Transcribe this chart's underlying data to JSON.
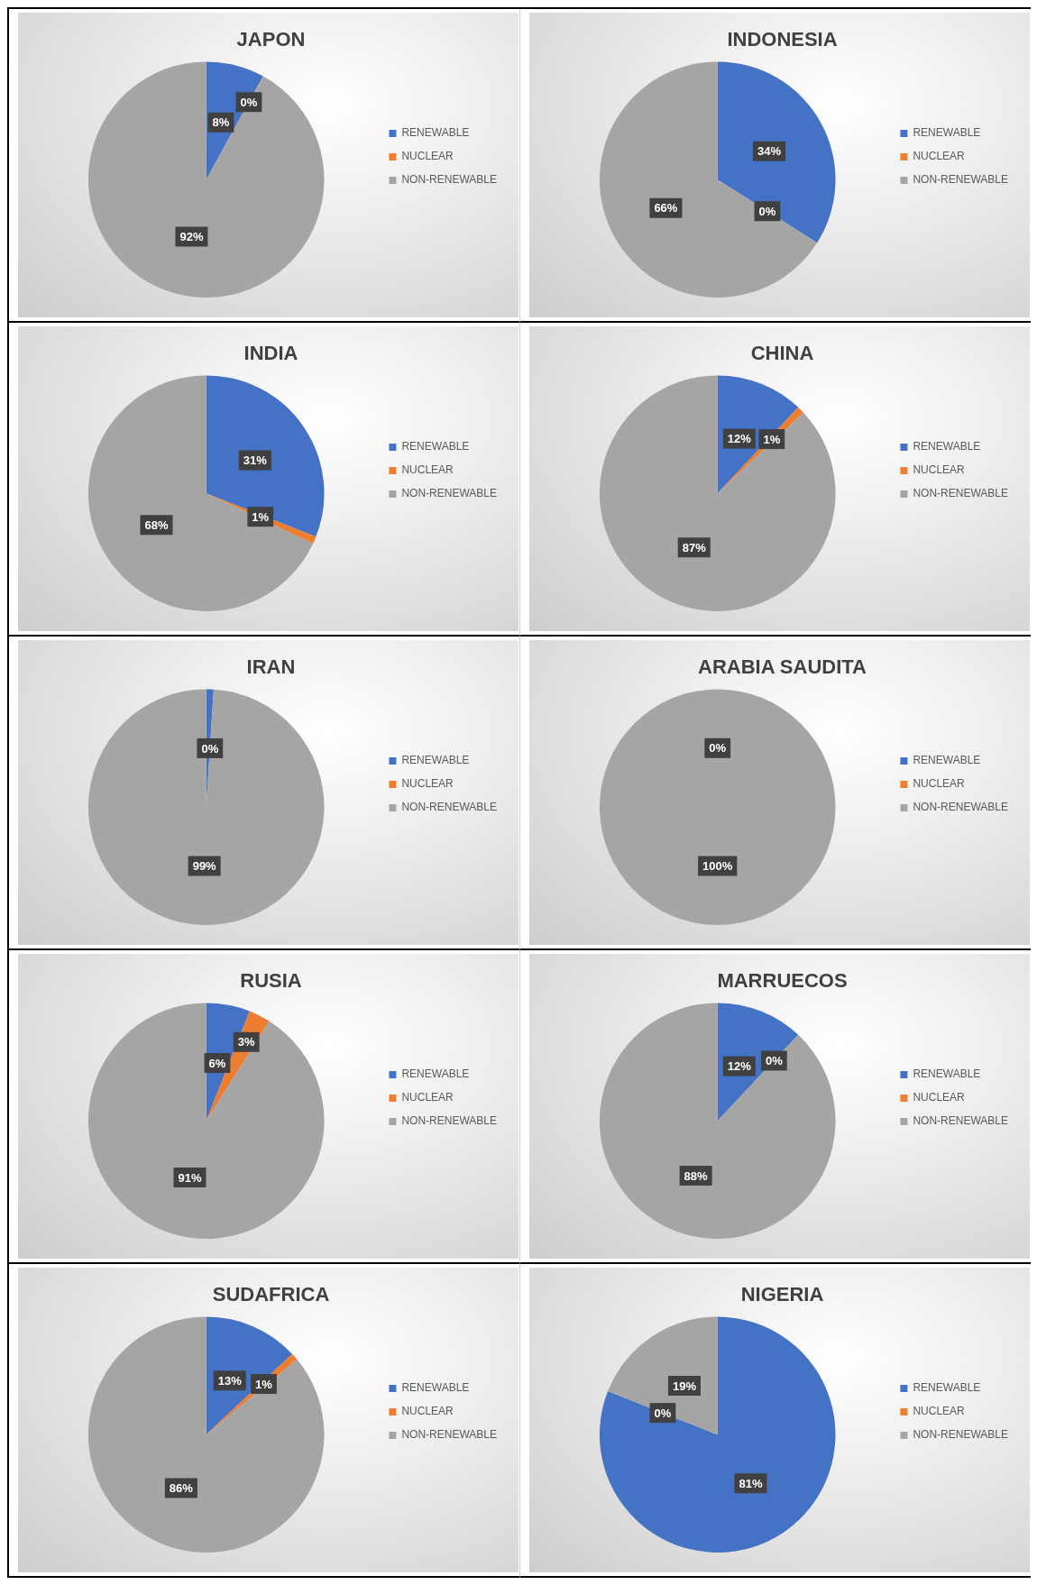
{
  "chart_data": [
    {
      "type": "pie",
      "title": "JAPON",
      "categories": [
        "RENEWABLE",
        "NUCLEAR",
        "NON-RENEWABLE"
      ],
      "values": [
        8,
        0,
        92
      ],
      "colors": [
        "#4472c4",
        "#ed7d31",
        "#a5a5a5"
      ],
      "value_labels": [
        "8%",
        "0%",
        "92%"
      ],
      "legend": "right"
    },
    {
      "type": "pie",
      "title": "INDONESIA",
      "categories": [
        "RENEWABLE",
        "NUCLEAR",
        "NON-RENEWABLE"
      ],
      "values": [
        34,
        0,
        66
      ],
      "colors": [
        "#4472c4",
        "#ed7d31",
        "#a5a5a5"
      ],
      "value_labels": [
        "34%",
        "0%",
        "66%"
      ],
      "legend": "right"
    },
    {
      "type": "pie",
      "title": "INDIA",
      "categories": [
        "RENEWABLE",
        "NUCLEAR",
        "NON-RENEWABLE"
      ],
      "values": [
        31,
        1,
        68
      ],
      "colors": [
        "#4472c4",
        "#ed7d31",
        "#a5a5a5"
      ],
      "value_labels": [
        "31%",
        "1%",
        "68%"
      ],
      "legend": "right"
    },
    {
      "type": "pie",
      "title": "CHINA",
      "categories": [
        "RENEWABLE",
        "NUCLEAR",
        "NON-RENEWABLE"
      ],
      "values": [
        12,
        1,
        87
      ],
      "colors": [
        "#4472c4",
        "#ed7d31",
        "#a5a5a5"
      ],
      "value_labels": [
        "12%",
        "1%",
        "87%"
      ],
      "legend": "right"
    },
    {
      "type": "pie",
      "title": "IRAN",
      "categories": [
        "RENEWABLE",
        "NUCLEAR",
        "NON-RENEWABLE"
      ],
      "values": [
        1,
        0,
        99
      ],
      "colors": [
        "#4472c4",
        "#ed7d31",
        "#a5a5a5"
      ],
      "value_labels": [
        null,
        "0%",
        "99%"
      ],
      "legend": "right"
    },
    {
      "type": "pie",
      "title": "ARABIA SAUDITA",
      "categories": [
        "RENEWABLE",
        "NUCLEAR",
        "NON-RENEWABLE"
      ],
      "values": [
        0,
        0,
        100
      ],
      "colors": [
        "#4472c4",
        "#ed7d31",
        "#a5a5a5"
      ],
      "value_labels": [
        null,
        "0%",
        "100%"
      ],
      "legend": "right"
    },
    {
      "type": "pie",
      "title": "RUSIA",
      "categories": [
        "RENEWABLE",
        "NUCLEAR",
        "NON-RENEWABLE"
      ],
      "values": [
        6,
        3,
        91
      ],
      "colors": [
        "#4472c4",
        "#ed7d31",
        "#a5a5a5"
      ],
      "value_labels": [
        "6%",
        "3%",
        "91%"
      ],
      "legend": "right"
    },
    {
      "type": "pie",
      "title": "MARRUECOS",
      "categories": [
        "RENEWABLE",
        "NUCLEAR",
        "NON-RENEWABLE"
      ],
      "values": [
        12,
        0,
        88
      ],
      "colors": [
        "#4472c4",
        "#ed7d31",
        "#a5a5a5"
      ],
      "value_labels": [
        "12%",
        "0%",
        "88%"
      ],
      "legend": "right"
    },
    {
      "type": "pie",
      "title": "SUDAFRICA",
      "categories": [
        "RENEWABLE",
        "NUCLEAR",
        "NON-RENEWABLE"
      ],
      "values": [
        13,
        1,
        86
      ],
      "colors": [
        "#4472c4",
        "#ed7d31",
        "#a5a5a5"
      ],
      "value_labels": [
        "13%",
        "1%",
        "86%"
      ],
      "legend": "right"
    },
    {
      "type": "pie",
      "title": "NIGERIA",
      "categories": [
        "RENEWABLE",
        "NUCLEAR",
        "NON-RENEWABLE"
      ],
      "values": [
        81,
        0,
        19
      ],
      "colors": [
        "#4472c4",
        "#ed7d31",
        "#a5a5a5"
      ],
      "value_labels": [
        "81%",
        "0%",
        "19%"
      ],
      "legend": "right"
    }
  ]
}
